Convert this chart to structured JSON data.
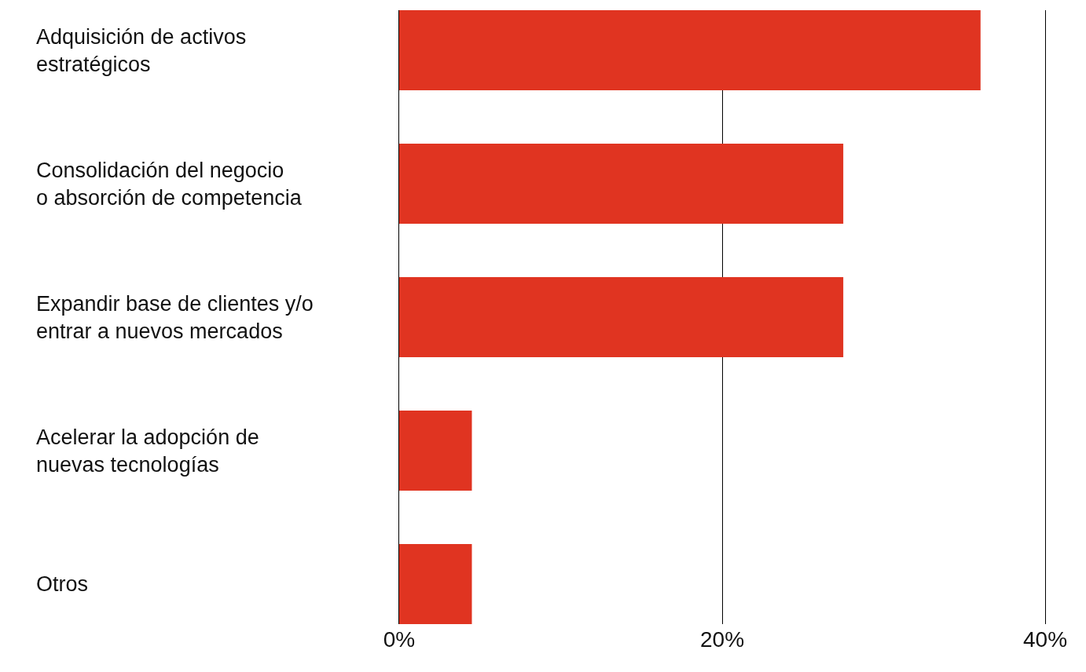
{
  "chart_data": {
    "type": "bar",
    "orientation": "horizontal",
    "categories": [
      "Adquisición de activos\nestratégicos",
      "Consolidación del negocio\no absorción de competencia",
      "Expandir base de clientes y/o\nentrar a nuevos mercados",
      "Acelerar la adopción de\nnuevas tecnologías",
      "Otros"
    ],
    "values": [
      36,
      27.5,
      27.5,
      4.5,
      4.5
    ],
    "color": "#e03421",
    "xlim": [
      0,
      40
    ],
    "xticks": [
      {
        "value": 0,
        "label": "0%"
      },
      {
        "value": 20,
        "label": "20%"
      },
      {
        "value": 40,
        "label": "40%"
      }
    ],
    "grid": "x"
  }
}
